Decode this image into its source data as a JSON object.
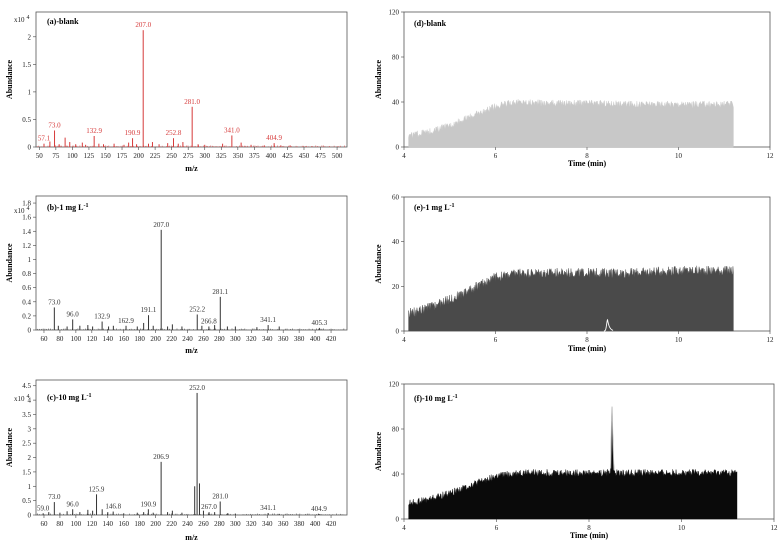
{
  "chart_data": [
    {
      "id": "a",
      "kind": "spectrum",
      "type": "bar",
      "title": "(a)-blank",
      "xlabel": "m/z",
      "ylabel": "Abundance",
      "multiplier": "x10 4",
      "xlim": [
        45,
        515
      ],
      "ylim": [
        0,
        2.45
      ],
      "xticks": [
        50,
        75,
        100,
        125,
        150,
        175,
        200,
        225,
        250,
        275,
        300,
        325,
        350,
        375,
        400,
        425,
        450,
        475,
        500
      ],
      "yticks": [
        0,
        0.5,
        1,
        1.5,
        2
      ],
      "color": "#d63a3a",
      "peaks": [
        [
          57.1,
          0.06
        ],
        [
          66,
          0.1
        ],
        [
          73,
          0.3
        ],
        [
          80,
          0.05
        ],
        [
          89,
          0.17
        ],
        [
          96,
          0.09
        ],
        [
          105,
          0.05
        ],
        [
          115,
          0.08
        ],
        [
          120,
          0.04
        ],
        [
          132.9,
          0.2
        ],
        [
          140,
          0.06
        ],
        [
          147,
          0.05
        ],
        [
          163,
          0.06
        ],
        [
          178,
          0.04
        ],
        [
          185,
          0.08
        ],
        [
          190.9,
          0.16
        ],
        [
          197,
          0.05
        ],
        [
          207,
          2.12
        ],
        [
          215,
          0.06
        ],
        [
          221,
          0.09
        ],
        [
          231,
          0.05
        ],
        [
          244,
          0.07
        ],
        [
          252.8,
          0.16
        ],
        [
          260,
          0.06
        ],
        [
          267,
          0.09
        ],
        [
          281,
          0.73
        ],
        [
          290,
          0.05
        ],
        [
          300,
          0.04
        ],
        [
          327,
          0.06
        ],
        [
          341,
          0.21
        ],
        [
          355,
          0.08
        ],
        [
          370,
          0.04
        ],
        [
          390,
          0.03
        ],
        [
          404.9,
          0.07
        ],
        [
          415,
          0.03
        ],
        [
          429,
          0.03
        ]
      ],
      "labels": [
        [
          57.1,
          0.06,
          "57.1"
        ],
        [
          73,
          0.3,
          "73.0"
        ],
        [
          132.9,
          0.2,
          "132.9"
        ],
        [
          190.9,
          0.16,
          "190.9"
        ],
        [
          207,
          2.12,
          "207.0"
        ],
        [
          252.8,
          0.16,
          "252.8"
        ],
        [
          281,
          0.73,
          "281.0"
        ],
        [
          341,
          0.21,
          "341.0"
        ],
        [
          404.9,
          0.07,
          "404.9"
        ]
      ]
    },
    {
      "id": "b",
      "kind": "spectrum",
      "type": "bar",
      "title": "(b)-1 mg L",
      "title_sup": "-1",
      "xlabel": "m/z",
      "ylabel": "Abundance",
      "multiplier": "x10 4",
      "xlim": [
        50,
        440
      ],
      "ylim": [
        0,
        1.9
      ],
      "xticks": [
        60,
        80,
        100,
        120,
        140,
        160,
        180,
        200,
        220,
        240,
        260,
        280,
        300,
        320,
        340,
        360,
        380,
        400,
        420
      ],
      "yticks": [
        0,
        0.2,
        0.4,
        0.6,
        0.8,
        1,
        1.2,
        1.4,
        1.6,
        1.8
      ],
      "color": "#333333",
      "peaks": [
        [
          73,
          0.32
        ],
        [
          78,
          0.06
        ],
        [
          89,
          0.05
        ],
        [
          96,
          0.15
        ],
        [
          105,
          0.06
        ],
        [
          115,
          0.07
        ],
        [
          121,
          0.05
        ],
        [
          132.9,
          0.12
        ],
        [
          141,
          0.05
        ],
        [
          147,
          0.06
        ],
        [
          162.9,
          0.06
        ],
        [
          177,
          0.05
        ],
        [
          185,
          0.1
        ],
        [
          191.1,
          0.21
        ],
        [
          197,
          0.06
        ],
        [
          207,
          1.42
        ],
        [
          215,
          0.05
        ],
        [
          221,
          0.08
        ],
        [
          233,
          0.05
        ],
        [
          252.2,
          0.22
        ],
        [
          258,
          0.06
        ],
        [
          266.8,
          0.05
        ],
        [
          274,
          0.07
        ],
        [
          281.1,
          0.47
        ],
        [
          290,
          0.05
        ],
        [
          300,
          0.05
        ],
        [
          327,
          0.04
        ],
        [
          341.1,
          0.07
        ],
        [
          355,
          0.05
        ],
        [
          405.3,
          0.03
        ]
      ],
      "labels": [
        [
          73,
          0.32,
          "73.0"
        ],
        [
          96,
          0.15,
          "96.0"
        ],
        [
          132.9,
          0.12,
          "132.9"
        ],
        [
          162.9,
          0.06,
          "162.9"
        ],
        [
          191.1,
          0.21,
          "191.1"
        ],
        [
          207,
          1.42,
          "207.0"
        ],
        [
          252.2,
          0.22,
          "252.2"
        ],
        [
          266.8,
          0.05,
          "266.8"
        ],
        [
          281.1,
          0.47,
          "281.1"
        ],
        [
          341.1,
          0.07,
          "341.1"
        ],
        [
          405.3,
          0.03,
          "405.3"
        ]
      ]
    },
    {
      "id": "c",
      "kind": "spectrum",
      "type": "bar",
      "title": "(c)-10 mg L",
      "title_sup": "-1",
      "xlabel": "m/z",
      "ylabel": "Abundance",
      "multiplier": "x10 4",
      "xlim": [
        50,
        440
      ],
      "ylim": [
        0,
        4.7
      ],
      "xticks": [
        60,
        80,
        100,
        120,
        140,
        160,
        180,
        200,
        220,
        240,
        260,
        280,
        300,
        320,
        340,
        360,
        380,
        400,
        420
      ],
      "yticks": [
        0,
        0.5,
        1,
        1.5,
        2,
        2.5,
        3,
        3.5,
        4,
        4.5
      ],
      "color": "#333333",
      "peaks": [
        [
          59,
          0.06
        ],
        [
          66,
          0.1
        ],
        [
          73,
          0.45
        ],
        [
          80,
          0.08
        ],
        [
          89,
          0.13
        ],
        [
          96,
          0.2
        ],
        [
          105,
          0.1
        ],
        [
          115,
          0.18
        ],
        [
          121,
          0.15
        ],
        [
          125.9,
          0.72
        ],
        [
          133,
          0.2
        ],
        [
          140,
          0.1
        ],
        [
          146.8,
          0.12
        ],
        [
          160,
          0.06
        ],
        [
          177,
          0.08
        ],
        [
          185,
          0.1
        ],
        [
          190.9,
          0.2
        ],
        [
          197,
          0.08
        ],
        [
          206.9,
          1.85
        ],
        [
          215,
          0.1
        ],
        [
          221,
          0.15
        ],
        [
          233,
          0.08
        ],
        [
          249,
          1.0
        ],
        [
          252,
          4.25
        ],
        [
          255,
          1.1
        ],
        [
          260,
          0.15
        ],
        [
          267,
          0.1
        ],
        [
          274,
          0.1
        ],
        [
          281,
          0.47
        ],
        [
          290,
          0.06
        ],
        [
          300,
          0.05
        ],
        [
          341.1,
          0.07
        ],
        [
          355,
          0.04
        ],
        [
          404.9,
          0.03
        ]
      ],
      "labels": [
        [
          59,
          0.06,
          "59.0"
        ],
        [
          73,
          0.45,
          "73.0"
        ],
        [
          96,
          0.2,
          "96.0"
        ],
        [
          125.9,
          0.72,
          "125.9"
        ],
        [
          146.8,
          0.12,
          "146.8"
        ],
        [
          190.9,
          0.2,
          "190.9"
        ],
        [
          206.9,
          1.85,
          "206.9"
        ],
        [
          252,
          4.25,
          "252.0"
        ],
        [
          267,
          0.1,
          "267.0"
        ],
        [
          281,
          0.47,
          "281.0"
        ],
        [
          341.1,
          0.07,
          "341.1"
        ],
        [
          404.9,
          0.03,
          "404.9"
        ]
      ]
    },
    {
      "id": "d",
      "kind": "chromatogram",
      "type": "area",
      "title": "(d)-blank",
      "xlabel": "Time (min)",
      "ylabel": "Abundance",
      "xlim": [
        4,
        12
      ],
      "ylim": [
        0,
        120
      ],
      "xticks": [
        4,
        6,
        8,
        10,
        12
      ],
      "yticks": [
        0,
        40,
        80,
        120
      ],
      "color": "#c8c8c8",
      "trace": [
        [
          4.1,
          10
        ],
        [
          4.5,
          13
        ],
        [
          5,
          19
        ],
        [
          5.5,
          28
        ],
        [
          6,
          36
        ],
        [
          6.4,
          40
        ],
        [
          7,
          39
        ],
        [
          8,
          39
        ],
        [
          9,
          38
        ],
        [
          10,
          38
        ],
        [
          11.2,
          38
        ]
      ],
      "noise": 3,
      "peak": null
    },
    {
      "id": "e",
      "kind": "chromatogram",
      "type": "area",
      "title": "(e)-1 mg L",
      "title_sup": "-1",
      "xlabel": "Time (min)",
      "ylabel": "Abundance",
      "xlim": [
        4,
        12
      ],
      "ylim": [
        0,
        60
      ],
      "xticks": [
        4,
        6,
        8,
        10,
        12
      ],
      "yticks": [
        0,
        20,
        40,
        60
      ],
      "color": "#4a4a4a",
      "trace": [
        [
          4.1,
          8
        ],
        [
          4.5,
          10
        ],
        [
          5,
          14
        ],
        [
          5.5,
          19
        ],
        [
          6,
          24
        ],
        [
          6.5,
          26
        ],
        [
          7,
          26
        ],
        [
          8,
          26
        ],
        [
          9,
          26
        ],
        [
          10,
          27
        ],
        [
          11.2,
          27
        ]
      ],
      "noise": 2.2,
      "peak": [
        8.45,
        5,
        0.03
      ]
    },
    {
      "id": "f",
      "kind": "chromatogram",
      "type": "area",
      "title": "(f)-10 mg L",
      "title_sup": "-1",
      "xlabel": "Time (min)",
      "ylabel": "Abundance",
      "xlim": [
        4,
        12
      ],
      "ylim": [
        0,
        120
      ],
      "xticks": [
        4,
        6,
        8,
        10,
        12
      ],
      "yticks": [
        0,
        40,
        80,
        120
      ],
      "color": "#0a0a0a",
      "trace": [
        [
          4.1,
          14
        ],
        [
          4.5,
          17
        ],
        [
          5,
          23
        ],
        [
          5.5,
          31
        ],
        [
          6,
          38
        ],
        [
          6.5,
          41
        ],
        [
          7,
          41
        ],
        [
          8,
          41
        ],
        [
          9,
          41
        ],
        [
          10,
          41
        ],
        [
          11.2,
          41
        ]
      ],
      "noise": 3.2,
      "peak": [
        8.5,
        100,
        0.035
      ]
    }
  ]
}
